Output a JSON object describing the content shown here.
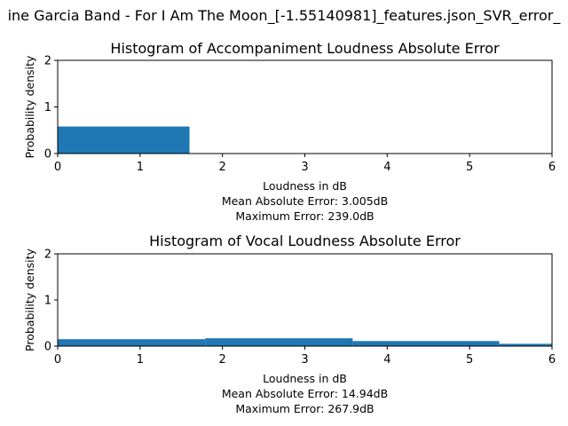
{
  "figure": {
    "suptitle": "ine Garcia Band - For I Am The Moon_[-1.55140981]_features.json_SVR_error_"
  },
  "colors": {
    "bar": "#1f77b4",
    "axes": "#000000",
    "background": "#ffffff"
  },
  "chart_data": [
    {
      "type": "bar",
      "title": "Histogram of Accompaniment Loudness Absolute Error",
      "xlabel": "Loudness in dB",
      "xlabel_lines": [
        "Loudness in dB",
        "Mean Absolute Error: 3.005dB",
        "Maximum Error: 239.0dB"
      ],
      "ylabel": "Probability density",
      "xlim": [
        0,
        6
      ],
      "ylim": [
        0,
        2
      ],
      "xticks": [
        "0",
        "1",
        "2",
        "3",
        "4",
        "5",
        "6"
      ],
      "yticks": [
        "0",
        "1",
        "2"
      ],
      "grid": false,
      "bins": [
        {
          "x0": 0,
          "x1": 1.6,
          "value": 0.58
        }
      ]
    },
    {
      "type": "bar",
      "title": "Histogram of Vocal Loudness Absolute Error",
      "xlabel": "Loudness in dB",
      "xlabel_lines": [
        "Loudness in dB",
        "Mean Absolute Error: 14.94dB",
        "Maximum Error: 267.9dB"
      ],
      "ylabel": "Probability density",
      "xlim": [
        0,
        6
      ],
      "ylim": [
        0,
        2
      ],
      "xticks": [
        "0",
        "1",
        "2",
        "3",
        "4",
        "5",
        "6"
      ],
      "yticks": [
        "0",
        "1",
        "2"
      ],
      "grid": false,
      "bins": [
        {
          "x0": 0,
          "x1": 1.79,
          "value": 0.15
        },
        {
          "x0": 1.79,
          "x1": 3.58,
          "value": 0.17
        },
        {
          "x0": 3.58,
          "x1": 5.36,
          "value": 0.11
        },
        {
          "x0": 5.36,
          "x1": 7.15,
          "value": 0.05
        }
      ]
    }
  ]
}
